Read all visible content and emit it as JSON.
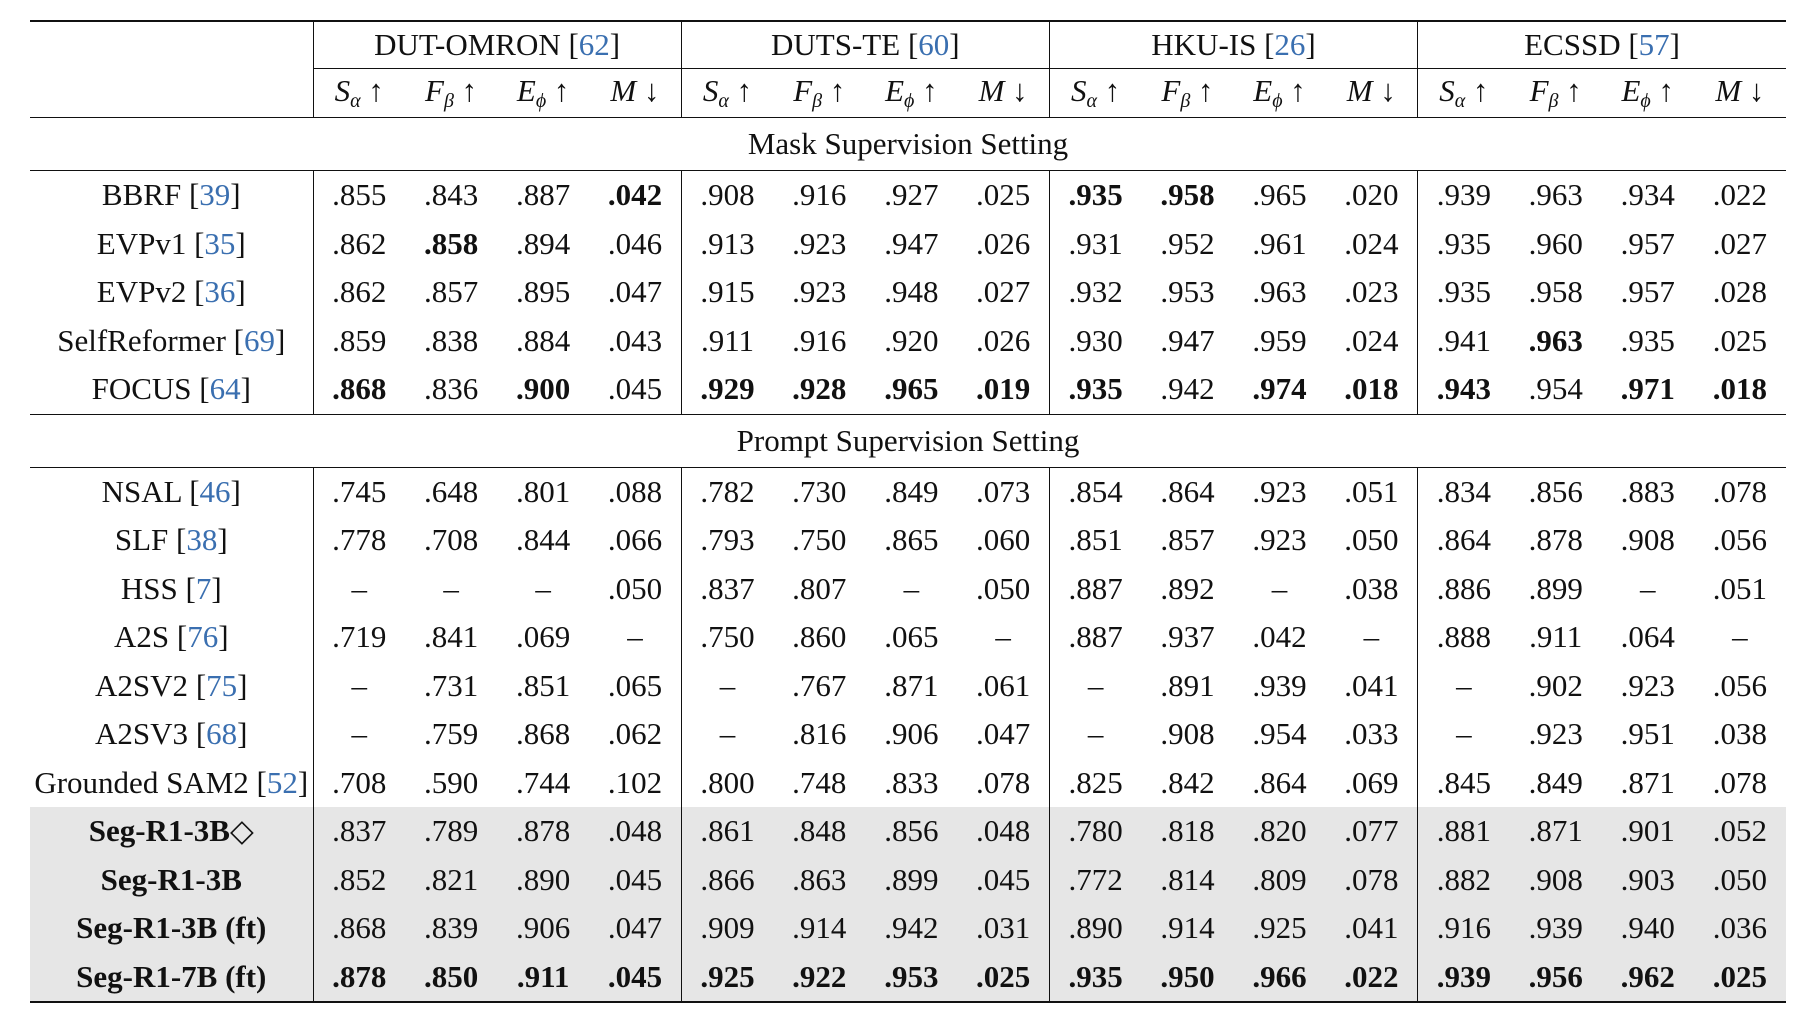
{
  "datasets": [
    {
      "name": "DUT-OMRON",
      "cite": "62"
    },
    {
      "name": "DUTS-TE",
      "cite": "60"
    },
    {
      "name": "HKU-IS",
      "cite": "26"
    },
    {
      "name": "ECSSD",
      "cite": "57"
    }
  ],
  "metrics": [
    {
      "sym": "S",
      "sub": "α",
      "arrow": "↑"
    },
    {
      "sym": "F",
      "sub": "β",
      "arrow": "↑"
    },
    {
      "sym": "E",
      "sub": "ϕ",
      "arrow": "↑"
    },
    {
      "sym": "M",
      "sub": "",
      "arrow": "↓"
    }
  ],
  "sections": [
    {
      "title": "Mask Supervision Setting",
      "rows": [
        {
          "method": "BBRF",
          "cite": "39",
          "ours": false,
          "values": [
            ".855",
            ".843",
            ".887",
            ".042",
            ".908",
            ".916",
            ".927",
            ".025",
            ".935",
            ".958",
            ".965",
            ".020",
            ".939",
            ".963",
            ".934",
            ".022"
          ],
          "bold": [
            3,
            8,
            9
          ]
        },
        {
          "method": "EVPv1",
          "cite": "35",
          "ours": false,
          "values": [
            ".862",
            ".858",
            ".894",
            ".046",
            ".913",
            ".923",
            ".947",
            ".026",
            ".931",
            ".952",
            ".961",
            ".024",
            ".935",
            ".960",
            ".957",
            ".027"
          ],
          "bold": [
            1
          ]
        },
        {
          "method": "EVPv2",
          "cite": "36",
          "ours": false,
          "values": [
            ".862",
            ".857",
            ".895",
            ".047",
            ".915",
            ".923",
            ".948",
            ".027",
            ".932",
            ".953",
            ".963",
            ".023",
            ".935",
            ".958",
            ".957",
            ".028"
          ],
          "bold": []
        },
        {
          "method": "SelfReformer",
          "cite": "69",
          "ours": false,
          "values": [
            ".859",
            ".838",
            ".884",
            ".043",
            ".911",
            ".916",
            ".920",
            ".026",
            ".930",
            ".947",
            ".959",
            ".024",
            ".941",
            ".963",
            ".935",
            ".025"
          ],
          "bold": [
            13
          ]
        },
        {
          "method": "FOCUS",
          "cite": "64",
          "ours": false,
          "values": [
            ".868",
            ".836",
            ".900",
            ".045",
            ".929",
            ".928",
            ".965",
            ".019",
            ".935",
            ".942",
            ".974",
            ".018",
            ".943",
            ".954",
            ".971",
            ".018"
          ],
          "bold": [
            0,
            2,
            4,
            5,
            6,
            7,
            8,
            10,
            11,
            12,
            14,
            15
          ]
        }
      ]
    },
    {
      "title": "Prompt Supervision Setting",
      "rows": [
        {
          "method": "NSAL",
          "cite": "46",
          "ours": false,
          "values": [
            ".745",
            ".648",
            ".801",
            ".088",
            ".782",
            ".730",
            ".849",
            ".073",
            ".854",
            ".864",
            ".923",
            ".051",
            ".834",
            ".856",
            ".883",
            ".078"
          ],
          "bold": []
        },
        {
          "method": "SLF",
          "cite": "38",
          "ours": false,
          "values": [
            ".778",
            ".708",
            ".844",
            ".066",
            ".793",
            ".750",
            ".865",
            ".060",
            ".851",
            ".857",
            ".923",
            ".050",
            ".864",
            ".878",
            ".908",
            ".056"
          ],
          "bold": []
        },
        {
          "method": "HSS",
          "cite": "7",
          "ours": false,
          "values": [
            "–",
            "–",
            "–",
            ".050",
            ".837",
            ".807",
            "–",
            ".050",
            ".887",
            ".892",
            "–",
            ".038",
            ".886",
            ".899",
            "–",
            ".051"
          ],
          "bold": []
        },
        {
          "method": "A2S",
          "cite": "76",
          "ours": false,
          "values": [
            ".719",
            ".841",
            ".069",
            "–",
            ".750",
            ".860",
            ".065",
            "–",
            ".887",
            ".937",
            ".042",
            "–",
            ".888",
            ".911",
            ".064",
            "–"
          ],
          "bold": []
        },
        {
          "method": "A2SV2",
          "cite": "75",
          "ours": false,
          "values": [
            "–",
            ".731",
            ".851",
            ".065",
            "–",
            ".767",
            ".871",
            ".061",
            "–",
            ".891",
            ".939",
            ".041",
            "–",
            ".902",
            ".923",
            ".056"
          ],
          "bold": []
        },
        {
          "method": "A2SV3",
          "cite": "68",
          "ours": false,
          "values": [
            "–",
            ".759",
            ".868",
            ".062",
            "–",
            ".816",
            ".906",
            ".047",
            "–",
            ".908",
            ".954",
            ".033",
            "–",
            ".923",
            ".951",
            ".038"
          ],
          "bold": []
        },
        {
          "method": "Grounded SAM2",
          "cite": "52",
          "ours": false,
          "values": [
            ".708",
            ".590",
            ".744",
            ".102",
            ".800",
            ".748",
            ".833",
            ".078",
            ".825",
            ".842",
            ".864",
            ".069",
            ".845",
            ".849",
            ".871",
            ".078"
          ],
          "bold": []
        },
        {
          "method": "Seg-R1-3B◇",
          "cite": "",
          "ours": true,
          "values": [
            ".837",
            ".789",
            ".878",
            ".048",
            ".861",
            ".848",
            ".856",
            ".048",
            ".780",
            ".818",
            ".820",
            ".077",
            ".881",
            ".871",
            ".901",
            ".052"
          ],
          "bold": []
        },
        {
          "method": "Seg-R1-3B",
          "cite": "",
          "ours": true,
          "values": [
            ".852",
            ".821",
            ".890",
            ".045",
            ".866",
            ".863",
            ".899",
            ".045",
            ".772",
            ".814",
            ".809",
            ".078",
            ".882",
            ".908",
            ".903",
            ".050"
          ],
          "bold": []
        },
        {
          "method": "Seg-R1-3B (ft)",
          "cite": "",
          "ours": true,
          "values": [
            ".868",
            ".839",
            ".906",
            ".047",
            ".909",
            ".914",
            ".942",
            ".031",
            ".890",
            ".914",
            ".925",
            ".041",
            ".916",
            ".939",
            ".940",
            ".036"
          ],
          "bold": []
        },
        {
          "method": "Seg-R1-7B (ft)",
          "cite": "",
          "ours": true,
          "values": [
            ".878",
            ".850",
            ".911",
            ".045",
            ".925",
            ".922",
            ".953",
            ".025",
            ".935",
            ".950",
            ".966",
            ".022",
            ".939",
            ".956",
            ".962",
            ".025"
          ],
          "bold": [
            0,
            1,
            2,
            3,
            4,
            5,
            6,
            7,
            8,
            9,
            10,
            11,
            12,
            13,
            14,
            15
          ]
        }
      ]
    }
  ]
}
